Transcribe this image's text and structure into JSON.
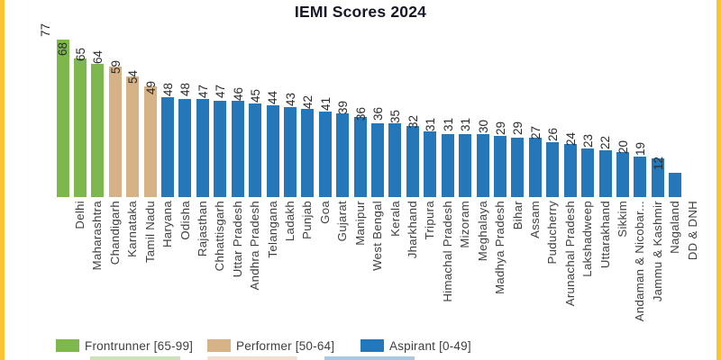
{
  "title": "IEMI Scores 2024",
  "colors": {
    "frontrunner": "#7cb84d",
    "performer": "#d6b286",
    "aspirant": "#2478ba",
    "frame_yellow": "#fbc331",
    "title_text": "#16162b",
    "value_text": "#2b2b2b",
    "axis_text": "#3f3f3f"
  },
  "legend": [
    {
      "label": "Frontrunner [65-99]",
      "band": "frontrunner"
    },
    {
      "label": "Performer [50-64]",
      "band": "performer"
    },
    {
      "label": "Aspirant [0-49]",
      "band": "aspirant"
    }
  ],
  "chart_data": {
    "type": "bar",
    "title": "IEMI Scores 2024",
    "categories": [
      "Delhi",
      "Maharashtra",
      "Chandigarh",
      "Karnataka",
      "Tamil Nadu",
      "Haryana",
      "Odisha",
      "Rajasthan",
      "Chhattisgarh",
      "Uttar Pradesh",
      "Andhra Pradesh",
      "Telangana",
      "Ladakh",
      "Punjab",
      "Goa",
      "Gujarat",
      "Manipur",
      "West Bengal",
      "Kerala",
      "Jharkhand",
      "Tripura",
      "Himachal Pradesh",
      "Mizoram",
      "Meghalaya",
      "Madhya Pradesh",
      "Bihar",
      "Assam",
      "Puducherry",
      "Arunachal Pradesh",
      "Lakshadweep",
      "Uttarakhand",
      "Sikkim",
      "Andaman & Nicobar...",
      "Jammu & Kashmir",
      "Nagaland",
      "DD & DNH"
    ],
    "values": [
      77,
      68,
      65,
      64,
      59,
      54,
      49,
      48,
      48,
      47,
      47,
      46,
      45,
      44,
      43,
      42,
      41,
      39,
      36,
      36,
      35,
      32,
      31,
      31,
      31,
      30,
      29,
      29,
      27,
      26,
      24,
      23,
      22,
      20,
      19,
      12
    ],
    "bands": [
      {
        "name": "Frontrunner",
        "range": [
          65,
          99
        ],
        "color": "#7cb84d"
      },
      {
        "name": "Performer",
        "range": [
          50,
          64
        ],
        "color": "#d6b286"
      },
      {
        "name": "Aspirant",
        "range": [
          0,
          49
        ],
        "color": "#2478ba"
      }
    ],
    "ylim": [
      0,
      80
    ],
    "grid": false,
    "legend_position": "bottom",
    "value_labels": "rotated -90deg above each bar",
    "category_labels": "rotated -90deg below baseline",
    "xlabel": "",
    "ylabel": ""
  }
}
